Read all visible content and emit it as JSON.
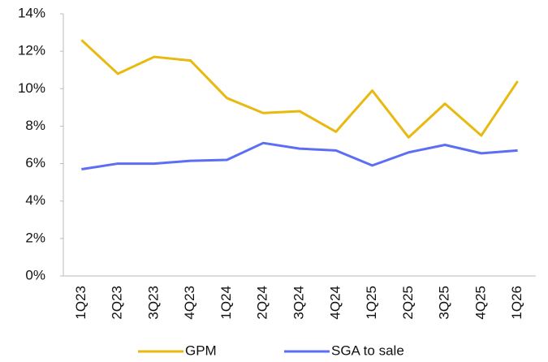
{
  "chart_data": {
    "type": "line",
    "categories": [
      "1Q23",
      "2Q23",
      "3Q23",
      "4Q23",
      "1Q24",
      "2Q24",
      "3Q24",
      "4Q24",
      "1Q25",
      "2Q25",
      "3Q25",
      "4Q25",
      "1Q26"
    ],
    "series": [
      {
        "name": "GPM",
        "color": "#e8b90f",
        "values": [
          12.6,
          10.8,
          11.7,
          11.5,
          9.5,
          8.7,
          8.8,
          7.7,
          9.9,
          7.4,
          9.2,
          7.5,
          10.4
        ]
      },
      {
        "name": "SGA to sale",
        "color": "#5b6ef5",
        "values": [
          5.7,
          6.0,
          6.0,
          6.15,
          6.2,
          7.1,
          6.8,
          6.7,
          5.9,
          6.6,
          7.0,
          6.55,
          6.7
        ]
      }
    ],
    "ylim": [
      0,
      14
    ],
    "yticks": [
      {
        "value": 0,
        "label": "0%"
      },
      {
        "value": 2,
        "label": "2%"
      },
      {
        "value": 4,
        "label": "4%"
      },
      {
        "value": 6,
        "label": "6%"
      },
      {
        "value": 8,
        "label": "8%"
      },
      {
        "value": 10,
        "label": "10%"
      },
      {
        "value": 12,
        "label": "12%"
      },
      {
        "value": 14,
        "label": "14%"
      }
    ],
    "grid": false,
    "legend": "bottom"
  }
}
